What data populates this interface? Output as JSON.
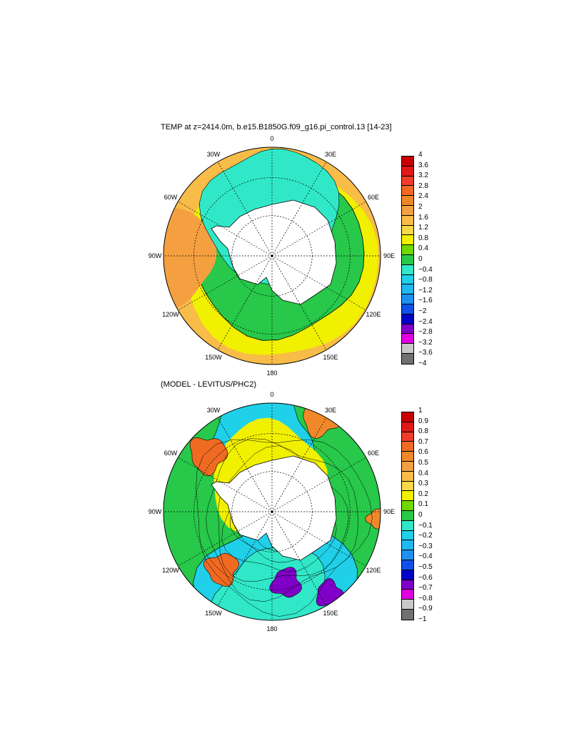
{
  "panels": [
    {
      "title": "TEMP at z=2414.0m, b.e15.B1850G.f09_g16.pi_control.13 [14-23]",
      "lon_labels": [
        "0",
        "30E",
        "60E",
        "90E",
        "120E",
        "150E",
        "180",
        "150W",
        "120W",
        "90W",
        "60W",
        "30W"
      ],
      "colorbar": {
        "ticks": [
          "4",
          "3.6",
          "3.2",
          "2.8",
          "2.4",
          "2",
          "1.6",
          "1.2",
          "0.8",
          "0.4",
          "0",
          "−0.4",
          "−0.8",
          "−1.2",
          "−1.6",
          "−2",
          "−2.4",
          "−2.8",
          "−3.2",
          "−3.6",
          "−4"
        ],
        "colors": [
          "#c80000",
          "#e01818",
          "#f03c28",
          "#f06a22",
          "#f0882a",
          "#f4a040",
          "#f8bc48",
          "#f8d848",
          "#f0f000",
          "#70d800",
          "#28c84a",
          "#30e8c8",
          "#20d0e8",
          "#20b8f0",
          "#2090f0",
          "#1050e8",
          "#0000c8",
          "#8000c8",
          "#e000e0",
          "#c8c8c8",
          "#707070"
        ]
      }
    },
    {
      "title": "(MODEL - LEVITUS/PHC2)",
      "lon_labels": [
        "0",
        "30E",
        "60E",
        "90E",
        "120E",
        "150E",
        "180",
        "150W",
        "120W",
        "90W",
        "60W",
        "30W"
      ],
      "colorbar": {
        "ticks": [
          "1",
          "0.9",
          "0.8",
          "0.7",
          "0.6",
          "0.5",
          "0.4",
          "0.3",
          "0.2",
          "0.1",
          "0",
          "−0.1",
          "−0.2",
          "−0.3",
          "−0.4",
          "−0.5",
          "−0.6",
          "−0.7",
          "−0.8",
          "−0.9",
          "−1"
        ],
        "colors": [
          "#c80000",
          "#e01818",
          "#f03c28",
          "#f06a22",
          "#f0882a",
          "#f4a040",
          "#f8bc48",
          "#f8d848",
          "#f0f000",
          "#70d800",
          "#28c84a",
          "#30e8c8",
          "#20d0e8",
          "#20b8f0",
          "#2090f0",
          "#1050e8",
          "#0000c8",
          "#8000c8",
          "#e000e0",
          "#c8c8c8",
          "#707070"
        ]
      }
    }
  ]
}
